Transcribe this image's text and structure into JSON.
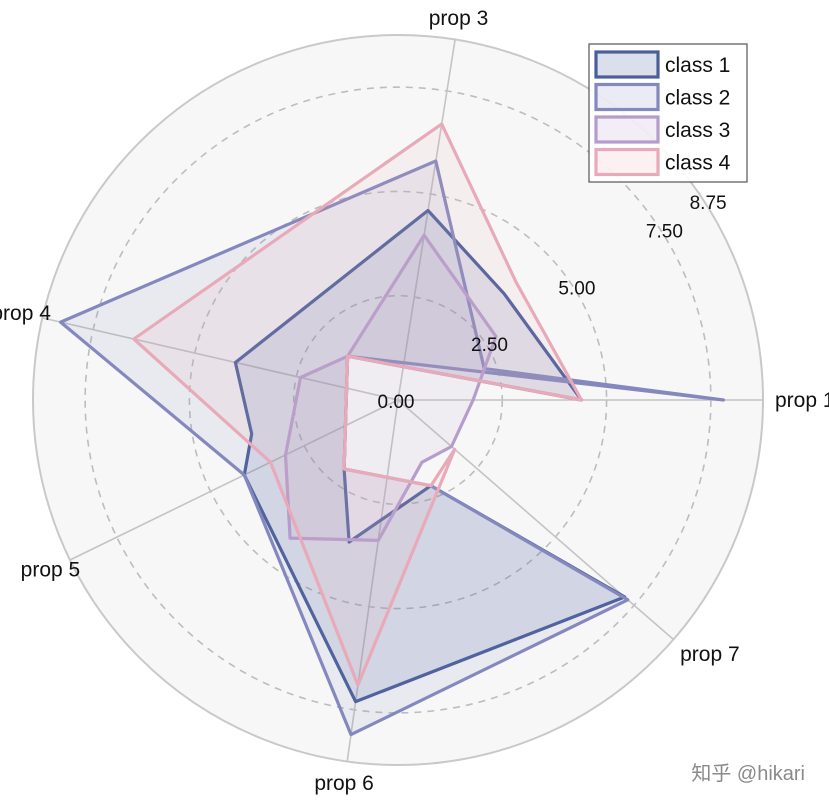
{
  "chart_data": {
    "type": "radar",
    "axes": [
      "prop 1",
      "prop 3",
      "prop 4",
      "prop 5",
      "prop 6",
      "prop 7"
    ],
    "axis_angles_deg": [
      0,
      81,
      167,
      206,
      262,
      319
    ],
    "radial_ticks": [
      {
        "value": 0.0,
        "label": "0.00"
      },
      {
        "value": 2.5,
        "label": "2.50"
      },
      {
        "value": 5.0,
        "label": "5.00"
      },
      {
        "value": 7.5,
        "label": "7.50"
      },
      {
        "value": 8.75,
        "label": "8.75"
      }
    ],
    "rmax": 8.75,
    "grid": "dashed circles",
    "legend_position": "top-right",
    "series": [
      {
        "name": "class 1",
        "color": "#4a5e9a",
        "fill_opacity": 0.15,
        "points": [
          [
            0,
            4.4
          ],
          [
            45,
            3.6
          ],
          [
            81,
            4.6
          ],
          [
            167,
            4.0
          ],
          [
            193,
            3.6
          ],
          [
            206,
            4.1
          ],
          [
            262,
            7.3
          ],
          [
            319,
            7.2
          ],
          [
            291,
            2.2
          ],
          [
            251,
            3.6
          ],
          [
            232,
            2.1
          ],
          [
            139,
            1.6
          ]
        ]
      },
      {
        "name": "class 2",
        "color": "#8488be",
        "fill_opacity": 0.12,
        "points": [
          [
            0,
            7.8
          ],
          [
            20,
            2.2
          ],
          [
            81,
            5.8
          ],
          [
            167,
            8.3
          ],
          [
            206,
            4.1
          ],
          [
            262,
            8.1
          ],
          [
            319,
            7.3
          ],
          [
            291,
            2.2
          ],
          [
            232,
            2.1
          ],
          [
            139,
            1.6
          ]
        ]
      },
      {
        "name": "class 3",
        "color": "#b59ccc",
        "fill_opacity": 0.12,
        "points": [
          [
            0,
            1.8
          ],
          [
            33,
            2.8
          ],
          [
            81,
            4.0
          ],
          [
            139,
            1.6
          ],
          [
            167,
            2.4
          ],
          [
            206,
            3.0
          ],
          [
            232,
            4.2
          ],
          [
            262,
            3.4
          ],
          [
            291,
            1.6
          ],
          [
            319,
            1.7
          ]
        ]
      },
      {
        "name": "class 4",
        "color": "#e8aab8",
        "fill_opacity": 0.12,
        "points": [
          [
            0,
            4.4
          ],
          [
            45,
            4.0
          ],
          [
            81,
            6.7
          ],
          [
            167,
            6.5
          ],
          [
            206,
            3.4
          ],
          [
            262,
            6.9
          ],
          [
            319,
            1.8
          ],
          [
            291,
            2.2
          ],
          [
            232,
            2.1
          ],
          [
            139,
            1.6
          ]
        ]
      }
    ]
  },
  "watermark": "知乎 @hikari"
}
